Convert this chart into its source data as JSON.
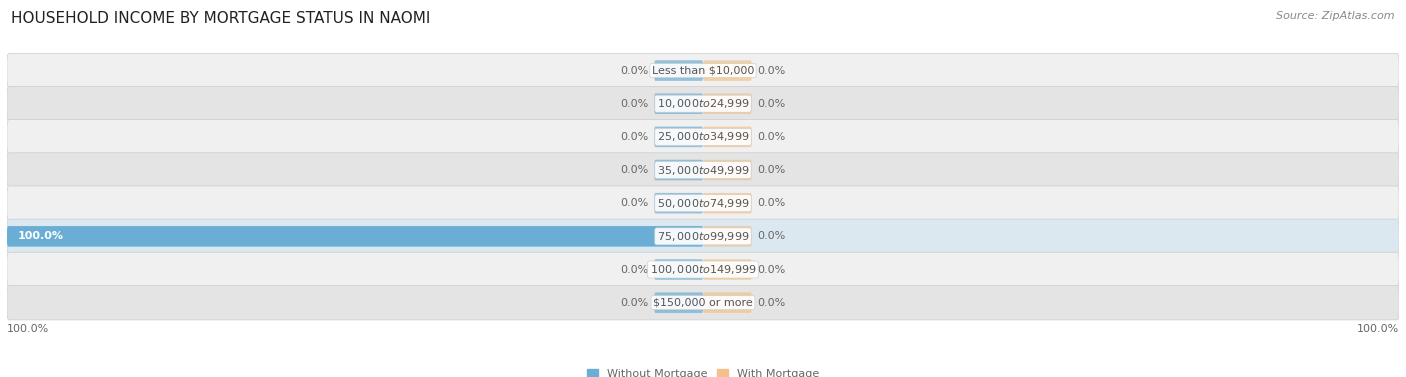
{
  "title": "HOUSEHOLD INCOME BY MORTGAGE STATUS IN NAOMI",
  "source": "Source: ZipAtlas.com",
  "categories": [
    "Less than $10,000",
    "$10,000 to $24,999",
    "$25,000 to $34,999",
    "$35,000 to $49,999",
    "$50,000 to $74,999",
    "$75,000 to $99,999",
    "$100,000 to $149,999",
    "$150,000 or more"
  ],
  "without_mortgage": [
    0.0,
    0.0,
    0.0,
    0.0,
    0.0,
    100.0,
    0.0,
    0.0
  ],
  "with_mortgage": [
    0.0,
    0.0,
    0.0,
    0.0,
    0.0,
    0.0,
    0.0,
    0.0
  ],
  "color_without": "#6aaed6",
  "color_with": "#f5c18a",
  "bg_row_light": "#f0f0f0",
  "bg_row_dark": "#e4e4e4",
  "bg_active": "#5b9fd4",
  "xlim_left": -100,
  "xlim_right": 100,
  "stub_size": 7,
  "axis_label_left": "100.0%",
  "axis_label_right": "100.0%",
  "legend_label_without": "Without Mortgage",
  "legend_label_with": "With Mortgage",
  "title_fontsize": 11,
  "label_fontsize": 8,
  "category_fontsize": 8,
  "source_fontsize": 8,
  "text_color_dark": "#555555",
  "text_color_light": "#ffffff",
  "text_color_label": "#666666"
}
